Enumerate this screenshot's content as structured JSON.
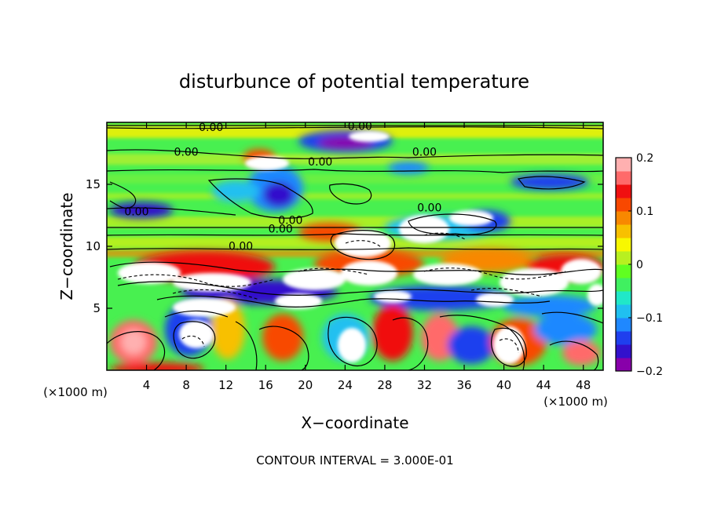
{
  "chart_data": {
    "type": "heatmap",
    "title": "disturbunce of potential temperature",
    "xlabel": "X−coordinate",
    "ylabel": "Z−coordinate",
    "x_unit_label": "(×1000 m)",
    "x_unit_label_right": "(×1000 m)",
    "xlim": [
      0,
      50
    ],
    "ylim": [
      0,
      20
    ],
    "x_ticks": [
      4,
      8,
      12,
      16,
      20,
      24,
      28,
      32,
      36,
      40,
      44,
      48
    ],
    "x_tick_labels": [
      "4",
      "8",
      "12",
      "16",
      "20",
      "24",
      "28",
      "32",
      "36",
      "40",
      "44",
      "48"
    ],
    "y_ticks": [
      5,
      10,
      15
    ],
    "y_tick_labels": [
      "5",
      "10",
      "15"
    ],
    "colorbar": {
      "range": [
        -0.2,
        0.2
      ],
      "ticks": [
        0.2,
        0.1,
        0,
        -0.1,
        -0.2
      ],
      "tick_labels": [
        "0.2",
        "0.1",
        "0",
        "−0.1",
        "−0.2"
      ],
      "colors": [
        "#8800aa",
        "#3311cc",
        "#1f3fee",
        "#1f88ff",
        "#20c0f0",
        "#20e8c8",
        "#40f060",
        "#60ff20",
        "#b8f020",
        "#f8f800",
        "#f8c000",
        "#f88800",
        "#f84800",
        "#f01010",
        "#ff6a6a",
        "#ffb0b0"
      ]
    },
    "contour_labels": [
      {
        "text": "0.00",
        "x": 10.5,
        "y": 19.5
      },
      {
        "text": "0.00",
        "x": 25.5,
        "y": 19.6
      },
      {
        "text": "0.00",
        "x": 8.0,
        "y": 17.5
      },
      {
        "text": "0.00",
        "x": 21.5,
        "y": 16.7
      },
      {
        "text": "0.00",
        "x": 32.0,
        "y": 17.5
      },
      {
        "text": "0.00",
        "x": 3.0,
        "y": 12.7
      },
      {
        "text": "0.00",
        "x": 32.5,
        "y": 13.0
      },
      {
        "text": "0.00",
        "x": 18.5,
        "y": 12.0
      },
      {
        "text": "0.00",
        "x": 17.5,
        "y": 11.3
      },
      {
        "text": "0.00",
        "x": 13.5,
        "y": 9.9
      }
    ],
    "contour_interval_label": "CONTOUR INTERVAL = 3.000E-01",
    "grid": false
  }
}
